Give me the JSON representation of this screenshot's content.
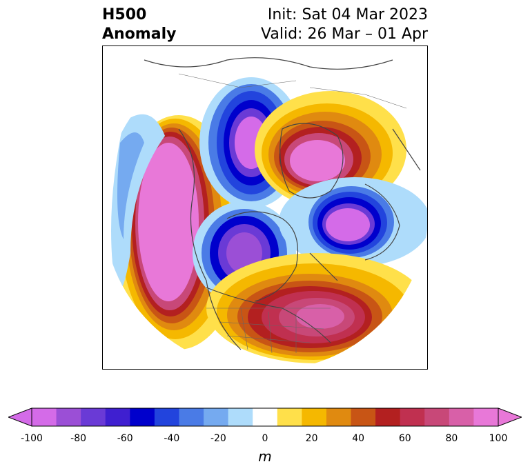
{
  "header": {
    "title_line1": "H500",
    "title_line2": "Anomaly",
    "init_text": "Init: Sat 04 Mar 2023",
    "valid_text": "Valid: 26 Mar – 01 Apr"
  },
  "colorbar": {
    "unit": "m",
    "ticks": [
      "-100",
      "-80",
      "-60",
      "-40",
      "-20",
      "0",
      "20",
      "40",
      "60",
      "80",
      "100"
    ],
    "colors": [
      "#d46be8",
      "#9b4fd6",
      "#6a3ad6",
      "#3f1fd0",
      "#0000cc",
      "#2244dd",
      "#4a7be6",
      "#75aaf0",
      "#aedcfb",
      "#ffffff",
      "#ffe04a",
      "#f5b800",
      "#e08a10",
      "#c85515",
      "#b32020",
      "#c03050",
      "#c84878",
      "#d860a8",
      "#e878d8"
    ],
    "extend_min_color": "#d46be8",
    "extend_max_color": "#e878d8"
  }
}
